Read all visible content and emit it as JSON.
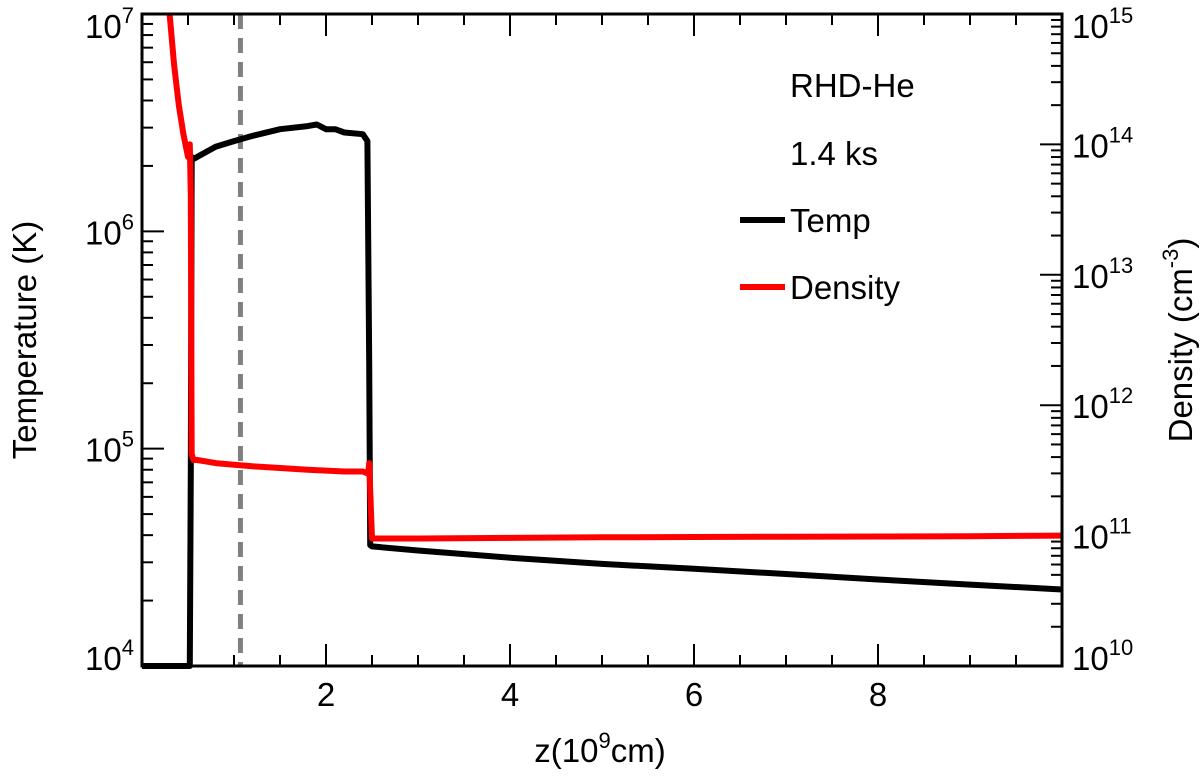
{
  "chart_data": {
    "type": "line",
    "title": "",
    "xlabel": {
      "prefix": "z(10",
      "exp": "9",
      "suffix": "cm)"
    },
    "ylabel_left": "Temperature (K)",
    "ylabel_right": {
      "prefix": "Density (cm",
      "exp": "-3",
      "suffix": ")"
    },
    "xlim": [
      0,
      10
    ],
    "ylim_left": [
      10000,
      10000000
    ],
    "ylim_right": [
      10000000000,
      1000000000000000
    ],
    "yscale": "log",
    "grid": false,
    "x_ticks": [
      {
        "value": 2,
        "label": "2"
      },
      {
        "value": 4,
        "label": "4"
      },
      {
        "value": 6,
        "label": "6"
      },
      {
        "value": 8,
        "label": "8"
      }
    ],
    "y_left_ticks": [
      {
        "value": 10000,
        "base": "10",
        "exp": "4"
      },
      {
        "value": 100000,
        "base": "10",
        "exp": "5"
      },
      {
        "value": 1000000,
        "base": "10",
        "exp": "6"
      },
      {
        "value": 10000000,
        "base": "10",
        "exp": "7"
      }
    ],
    "y_right_ticks": [
      {
        "value": 10000000000,
        "base": "10",
        "exp": "10"
      },
      {
        "value": 100000000000,
        "base": "10",
        "exp": "11"
      },
      {
        "value": 1000000000000,
        "base": "10",
        "exp": "12"
      },
      {
        "value": 10000000000000,
        "base": "10",
        "exp": "13"
      },
      {
        "value": 100000000000000,
        "base": "10",
        "exp": "14"
      },
      {
        "value": 1000000000000000,
        "base": "10",
        "exp": "15"
      }
    ],
    "annotations": {
      "model": "RHD-He",
      "time": "1.4 ks"
    },
    "reference_line": {
      "x": 1.07,
      "style": "dashed",
      "color": "#808080"
    },
    "legend_placement": "top-right",
    "series": [
      {
        "name": "Temp",
        "axis": "left",
        "color": "#000000",
        "x": [
          0.0,
          0.5,
          0.52,
          0.53,
          0.54,
          0.56,
          0.6,
          0.8,
          1.0,
          1.2,
          1.5,
          1.8,
          1.9,
          2.0,
          2.1,
          2.2,
          2.4,
          2.45,
          2.47,
          2.48,
          2.5,
          3.0,
          4.0,
          5.0,
          6.0,
          7.0,
          8.0,
          9.0,
          10.0
        ],
        "y": [
          10000,
          10000,
          10000,
          80000,
          2200000,
          2150000,
          2200000,
          2450000,
          2600000,
          2750000,
          2950000,
          3050000,
          3100000,
          2950000,
          2950000,
          2850000,
          2800000,
          2600000,
          250000,
          36000,
          35500,
          34000,
          31500,
          29500,
          28000,
          26500,
          25000,
          23700,
          22500
        ]
      },
      {
        "name": "Density",
        "axis": "right",
        "color": "#ff0000",
        "x": [
          0.3,
          0.35,
          0.4,
          0.45,
          0.5,
          0.52,
          0.53,
          0.54,
          0.56,
          0.6,
          0.8,
          1.0,
          1.2,
          1.5,
          1.8,
          2.0,
          2.2,
          2.4,
          2.45,
          2.46,
          2.47,
          2.5,
          3.0,
          4.0,
          5.0,
          6.0,
          7.0,
          8.0,
          9.0,
          10.0
        ],
        "y": [
          1000000000000000,
          400000000000000,
          200000000000000,
          120000000000000,
          80000000000000,
          100000000000000,
          40000000000000,
          420000000000,
          380000000000,
          380000000000,
          360000000000,
          350000000000,
          340000000000,
          330000000000,
          320000000000,
          315000000000,
          310000000000,
          310000000000,
          300000000000,
          300000000000,
          360000000000,
          95000000000,
          95000000000,
          96000000000,
          97000000000,
          97500000000,
          98000000000,
          98500000000,
          99000000000,
          100000000000
        ]
      }
    ]
  }
}
